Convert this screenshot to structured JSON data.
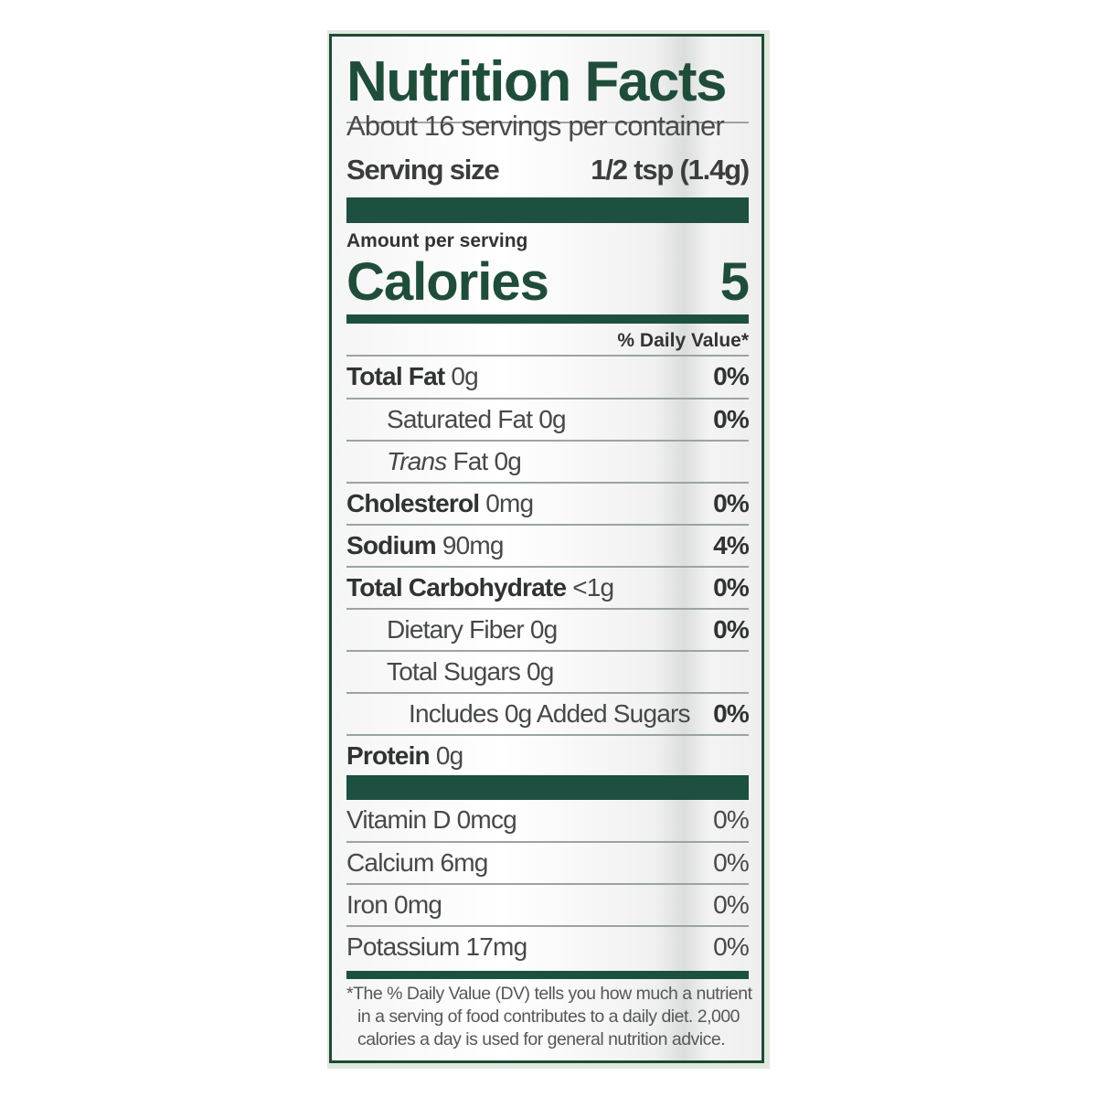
{
  "colors": {
    "brand_green": "#1f4d39",
    "bar_green": "#1d5040",
    "text": "#3a3d3b"
  },
  "title": "Nutrition Facts",
  "servings_per_container": "About 16 servings per container",
  "serving_size": {
    "label": "Serving size",
    "value": "1/2 tsp (1.4g)"
  },
  "amount_per_serving": "Amount per serving",
  "calories": {
    "label": "Calories",
    "value": "5"
  },
  "daily_value_header": "% Daily Value*",
  "nutrients": [
    {
      "name": "Total Fat",
      "amount": "0g",
      "dv": "0%",
      "bold": true,
      "indent": 0
    },
    {
      "name": "Saturated Fat",
      "amount": "0g",
      "dv": "0%",
      "bold": false,
      "indent": 1
    },
    {
      "name": "Trans",
      "name_suffix": "Fat",
      "amount": "0g",
      "dv": "",
      "bold": false,
      "indent": 1
    },
    {
      "name": "Cholesterol",
      "amount": "0mg",
      "dv": "0%",
      "bold": true,
      "indent": 0
    },
    {
      "name": "Sodium",
      "amount": "90mg",
      "dv": "4%",
      "bold": true,
      "indent": 0
    },
    {
      "name": "Total Carbohydrate",
      "amount": "<1g",
      "dv": "0%",
      "bold": true,
      "indent": 0
    },
    {
      "name": "Dietary Fiber",
      "amount": "0g",
      "dv": "0%",
      "bold": false,
      "indent": 1
    },
    {
      "name": "Total Sugars",
      "amount": "0g",
      "dv": "",
      "bold": false,
      "indent": 1
    },
    {
      "name": "Includes 0g Added Sugars",
      "amount": "",
      "dv": "0%",
      "bold": false,
      "indent": 2
    },
    {
      "name": "Protein",
      "amount": "0g",
      "dv": "",
      "bold": true,
      "indent": 0
    }
  ],
  "vitamins": [
    {
      "name": "Vitamin D",
      "amount": "0mcg",
      "dv": "0%"
    },
    {
      "name": "Calcium",
      "amount": "6mg",
      "dv": "0%"
    },
    {
      "name": "Iron",
      "amount": "0mg",
      "dv": "0%"
    },
    {
      "name": "Potassium",
      "amount": "17mg",
      "dv": "0%"
    }
  ],
  "footnote": {
    "lines": [
      "*The % Daily Value (DV) tells you how much a nutrient",
      "in a serving of food contributes to a daily diet. 2,000",
      "calories a day is used for general nutrition advice."
    ]
  }
}
